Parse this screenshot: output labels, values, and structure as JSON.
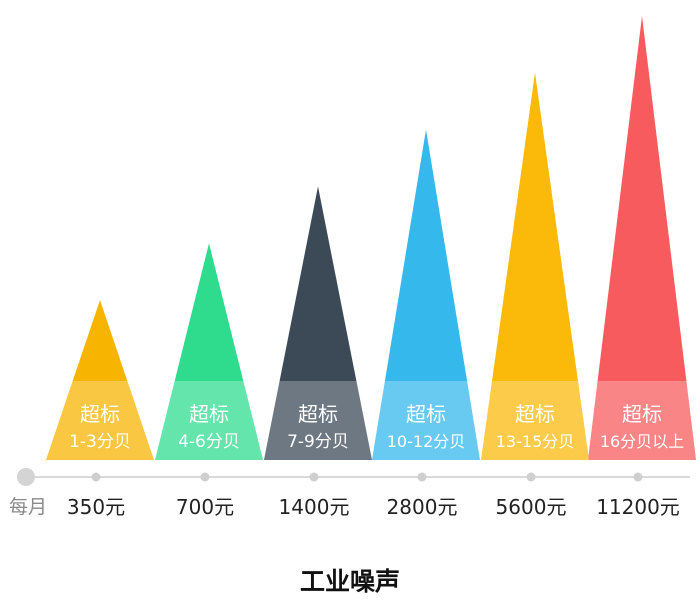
{
  "chart_data": {
    "type": "bar",
    "title": "工业噪声",
    "axis_prefix": "每月",
    "band_label": "超标",
    "categories": [
      "1-3分贝",
      "4-6分贝",
      "7-9分贝",
      "10-12分贝",
      "13-15分贝",
      "16分贝以上"
    ],
    "tick_labels": [
      "350元",
      "700元",
      "1400元",
      "2800元",
      "5600元",
      "11200元"
    ],
    "values": [
      350,
      700,
      1400,
      2800,
      5600,
      11200
    ],
    "unit": "元",
    "ylim": [
      0,
      11200
    ],
    "grid": false,
    "legend": "none",
    "colors": [
      "#f7b400",
      "#2fdc8e",
      "#3c4a58",
      "#35b8ec",
      "#fbb90a",
      "#f85b5e"
    ],
    "axis_color": "#d9d9d9"
  }
}
